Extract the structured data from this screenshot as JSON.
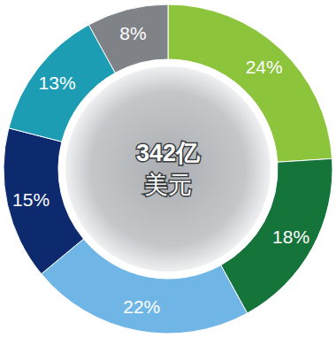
{
  "chart_data": {
    "type": "donut",
    "values": [
      24,
      18,
      22,
      15,
      13,
      8
    ],
    "value_labels": [
      "24%",
      "18%",
      "22%",
      "15%",
      "13%",
      "8%"
    ],
    "colors": [
      "#8cc43c",
      "#15743a",
      "#6fb6e6",
      "#0e2a6e",
      "#1d9db3",
      "#7f8286"
    ],
    "data_labels": true,
    "annotations": [
      "342亿",
      "美元"
    ]
  }
}
